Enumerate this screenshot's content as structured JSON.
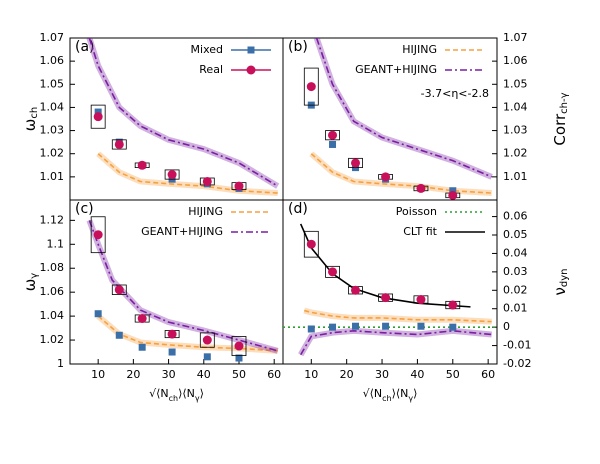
{
  "chart_data": [
    {
      "type": "scatter",
      "panel_label": "(a)",
      "ylabel_parts": [
        "ω",
        "ch"
      ],
      "axis_side": "left",
      "xlim": [
        2,
        62.5
      ],
      "ylim": [
        1,
        1.07
      ],
      "yticks": [
        1.01,
        1.02,
        1.03,
        1.04,
        1.05,
        1.06,
        1.07
      ],
      "legend": "upper right",
      "series": [
        {
          "name": "Mixed",
          "color": "#3b6fa8",
          "marker": "square",
          "x": [
            10,
            16,
            22.5,
            31,
            41,
            50
          ],
          "values": [
            1.038,
            1.025,
            1.015,
            1.009,
            1.007,
            1.005
          ]
        },
        {
          "name": "Real",
          "color": "#c8105a",
          "marker": "circle",
          "x": [
            10,
            16,
            22.5,
            31,
            41,
            50
          ],
          "values": [
            1.036,
            1.024,
            1.015,
            1.011,
            1.008,
            1.006
          ],
          "sys": [
            0.005,
            0.002,
            0.001,
            0.002,
            0.0015,
            0.0015
          ]
        }
      ],
      "lines": [
        {
          "color": "#f5a142",
          "style": "dashed",
          "band": true,
          "x": [
            10,
            16,
            22,
            30,
            40,
            50,
            61
          ],
          "values": [
            1.02,
            1.012,
            1.008,
            1.007,
            1.006,
            1.004,
            1.003
          ]
        },
        {
          "color": "#7a1fa2",
          "style": "dashdot",
          "band": true,
          "x": [
            7.5,
            10,
            16,
            22,
            30,
            40,
            50,
            61
          ],
          "values": [
            1.07,
            1.058,
            1.04,
            1.032,
            1.026,
            1.022,
            1.016,
            1.006
          ]
        }
      ]
    },
    {
      "type": "scatter",
      "panel_label": "(b)",
      "ylabel_parts": [
        "Corr",
        "ch-γ"
      ],
      "axis_side": "right",
      "annotation": "-3.7<η<-2.8",
      "xlim": [
        2,
        62.5
      ],
      "ylim": [
        1,
        1.07
      ],
      "yticks": [
        1.01,
        1.02,
        1.03,
        1.04,
        1.05,
        1.06,
        1.07
      ],
      "legend": "upper right",
      "series": [
        {
          "color": "#3b6fa8",
          "marker": "square",
          "x": [
            10,
            16,
            22.5,
            31,
            41,
            50
          ],
          "values": [
            1.041,
            1.024,
            1.014,
            1.009,
            1.005,
            1.004
          ]
        },
        {
          "color": "#c8105a",
          "marker": "circle",
          "x": [
            10,
            16,
            22.5,
            31,
            41,
            50
          ],
          "values": [
            1.049,
            1.028,
            1.016,
            1.01,
            1.005,
            1.002
          ],
          "sys": [
            0.008,
            0.002,
            0.002,
            0.001,
            0.001,
            0.001
          ]
        }
      ],
      "lines": [
        {
          "name": "HIJING",
          "color": "#f5a142",
          "style": "dashed",
          "band": true,
          "x": [
            10,
            16,
            22,
            30,
            40,
            50,
            61
          ],
          "values": [
            1.02,
            1.012,
            1.008,
            1.007,
            1.006,
            1.004,
            1.003
          ]
        },
        {
          "name": "GEANT+HIJING",
          "color": "#7a1fa2",
          "style": "dashdot",
          "band": true,
          "x": [
            11.5,
            16,
            22,
            30,
            40,
            50,
            61
          ],
          "values": [
            1.07,
            1.05,
            1.034,
            1.027,
            1.022,
            1.017,
            1.01
          ]
        }
      ]
    },
    {
      "type": "scatter",
      "panel_label": "(c)",
      "ylabel_parts": [
        "ω",
        "γ"
      ],
      "axis_side": "left",
      "xlabel_parts": [
        "√⟨N",
        "ch",
        "⟩⟨N",
        "γ",
        "⟩"
      ],
      "xlim": [
        2,
        62.5
      ],
      "xticks": [
        10,
        20,
        30,
        40,
        50,
        60
      ],
      "ylim": [
        1,
        1.137
      ],
      "yticks": [
        1,
        1.02,
        1.04,
        1.06,
        1.08,
        1.1,
        1.12
      ],
      "legend": "upper right",
      "series": [
        {
          "color": "#3b6fa8",
          "marker": "square",
          "x": [
            10,
            16,
            22.5,
            31,
            41,
            50
          ],
          "values": [
            1.042,
            1.024,
            1.014,
            1.01,
            1.006,
            1.005
          ]
        },
        {
          "color": "#c8105a",
          "marker": "circle",
          "x": [
            10,
            16,
            22.5,
            31,
            41,
            50
          ],
          "values": [
            1.108,
            1.062,
            1.038,
            1.025,
            1.02,
            1.015
          ],
          "sys": [
            0.015,
            0.004,
            0.003,
            0.003,
            0.006,
            0.008
          ]
        }
      ],
      "lines": [
        {
          "name": "HIJING",
          "color": "#f5a142",
          "style": "dashed",
          "band": true,
          "x": [
            10,
            16,
            22,
            30,
            40,
            50,
            61
          ],
          "values": [
            1.04,
            1.025,
            1.018,
            1.016,
            1.014,
            1.013,
            1.011
          ]
        },
        {
          "name": "GEANT+HIJING",
          "color": "#7a1fa2",
          "style": "dashdot",
          "band": true,
          "x": [
            7.5,
            10,
            14,
            22,
            30,
            40,
            50,
            61
          ],
          "values": [
            1.12,
            1.1,
            1.07,
            1.045,
            1.035,
            1.028,
            1.02,
            1.011
          ]
        }
      ]
    },
    {
      "type": "scatter",
      "panel_label": "(d)",
      "ylabel_parts": [
        "ν",
        "dyn"
      ],
      "axis_side": "right",
      "xlabel_parts": [
        "√⟨N",
        "ch",
        "⟩⟨N",
        "γ",
        "⟩"
      ],
      "xlim": [
        2,
        62.5
      ],
      "xticks": [
        10,
        20,
        30,
        40,
        50,
        60
      ],
      "ylim": [
        -0.02,
        0.069
      ],
      "yticks": [
        -0.02,
        -0.01,
        0,
        0.01,
        0.02,
        0.03,
        0.04,
        0.05,
        0.06
      ],
      "legend": "upper right",
      "series": [
        {
          "color": "#3b6fa8",
          "marker": "square",
          "x": [
            10,
            16,
            22.5,
            31,
            41,
            50
          ],
          "values": [
            -0.001,
            0,
            0.0005,
            0.0005,
            0.0005,
            0
          ]
        },
        {
          "color": "#c8105a",
          "marker": "circle",
          "x": [
            10,
            16,
            22.5,
            31,
            41,
            50
          ],
          "values": [
            0.045,
            0.03,
            0.02,
            0.016,
            0.015,
            0.012
          ],
          "sys": [
            0.007,
            0.003,
            0.002,
            0.002,
            0.002,
            0.002
          ]
        }
      ],
      "lines": [
        {
          "color": "#f5a142",
          "style": "dashed",
          "band": true,
          "x": [
            8,
            10,
            16,
            22,
            30,
            40,
            50,
            61
          ],
          "values": [
            0.009,
            0.008,
            0.006,
            0.005,
            0.005,
            0.004,
            0.004,
            0.003
          ]
        },
        {
          "color": "#7a1fa2",
          "style": "dashdot",
          "band": true,
          "x": [
            7,
            10,
            16,
            22,
            30,
            40,
            50,
            61
          ],
          "values": [
            -0.015,
            -0.005,
            -0.003,
            -0.002,
            -0.003,
            -0.004,
            -0.002,
            -0.004
          ]
        },
        {
          "name": "Poisson",
          "color": "#2ca02c",
          "style": "dotted",
          "x": [
            2,
            62.5
          ],
          "values": [
            0,
            0
          ]
        },
        {
          "name": "CLT fit",
          "color": "#000000",
          "style": "solid",
          "x": [
            7,
            10,
            16,
            22,
            30,
            40,
            55
          ],
          "values": [
            0.056,
            0.043,
            0.029,
            0.021,
            0.016,
            0.013,
            0.011
          ]
        }
      ]
    }
  ]
}
